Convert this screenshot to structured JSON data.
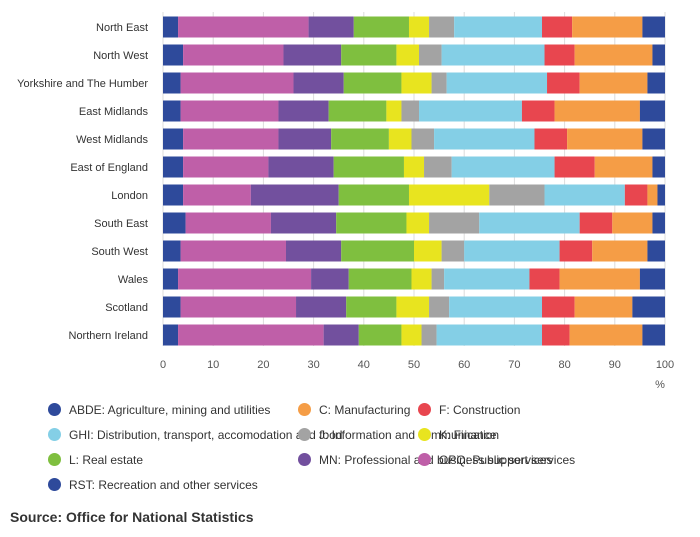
{
  "chart_data": {
    "type": "bar",
    "orientation": "horizontal",
    "stacked": true,
    "title": "",
    "xlabel": "%",
    "ylabel": "",
    "xlim": [
      0,
      100
    ],
    "xticks": [
      0,
      10,
      20,
      30,
      40,
      50,
      60,
      70,
      80,
      90,
      100
    ],
    "grid": true,
    "legend_position": "bottom",
    "categories": [
      "North East",
      "North West",
      "Yorkshire and The Humber",
      "East Midlands",
      "West Midlands",
      "East of England",
      "London",
      "South East",
      "South West",
      "Wales",
      "Scotland",
      "Northern Ireland"
    ],
    "series": [
      {
        "name": "ABDE: Agriculture, mining and utilities",
        "color": "#2e4a9b",
        "values": [
          3.0,
          4.0,
          3.5,
          3.5,
          4.0,
          4.0,
          4.0,
          4.5,
          3.5,
          3.0,
          3.5,
          3.0
        ]
      },
      {
        "name": "OPQ: Public services",
        "color": "#bf5fa8",
        "values": [
          26.0,
          20.0,
          22.5,
          19.5,
          19.0,
          17.0,
          13.5,
          17.0,
          21.0,
          26.5,
          23.0,
          29.0
        ]
      },
      {
        "name": "MN: Professional and business support services",
        "color": "#72509e",
        "values": [
          9.0,
          11.5,
          10.0,
          10.0,
          10.5,
          13.0,
          17.5,
          13.0,
          11.0,
          7.5,
          10.0,
          7.0
        ]
      },
      {
        "name": "L: Real estate",
        "color": "#7fbf3f",
        "values": [
          11.0,
          11.0,
          11.5,
          11.5,
          11.5,
          14.0,
          14.0,
          14.0,
          14.5,
          12.5,
          10.0,
          8.5
        ]
      },
      {
        "name": "K: Finance",
        "color": "#e8e41f",
        "values": [
          4.0,
          4.5,
          6.0,
          3.0,
          4.5,
          4.0,
          16.0,
          4.5,
          5.5,
          4.0,
          6.5,
          4.0
        ]
      },
      {
        "name": "J: Information and communication",
        "color": "#a3a3a3",
        "values": [
          5.0,
          4.5,
          3.0,
          3.5,
          4.5,
          5.5,
          11.0,
          10.0,
          4.5,
          2.5,
          4.0,
          3.0
        ]
      },
      {
        "name": "GHI: Distribution, transport, accomodation and food",
        "color": "#84cfe6",
        "values": [
          17.5,
          20.5,
          20.0,
          20.5,
          20.0,
          20.5,
          16.0,
          20.0,
          19.0,
          17.0,
          18.5,
          21.0
        ]
      },
      {
        "name": "F: Construction",
        "color": "#e8464f",
        "values": [
          6.0,
          6.0,
          6.5,
          6.5,
          6.5,
          8.0,
          4.5,
          6.5,
          6.5,
          6.0,
          6.5,
          5.5
        ]
      },
      {
        "name": "C: Manufacturing",
        "color": "#f59d46",
        "values": [
          14.0,
          15.5,
          13.5,
          17.0,
          15.0,
          11.5,
          2.0,
          8.0,
          11.0,
          16.0,
          11.5,
          14.5
        ]
      },
      {
        "name": "RST: Recreation and other services",
        "color": "#2e4a9b",
        "values": [
          4.5,
          3.0,
          3.5,
          5.5,
          4.5,
          3.5,
          1.5,
          3.5,
          4.5,
          5.0,
          6.5,
          4.5
        ]
      }
    ]
  },
  "legend": [
    {
      "label": "ABDE: Agriculture, mining and utilities",
      "color": "#2e4a9b"
    },
    {
      "label": "C: Manufacturing",
      "color": "#f59d46"
    },
    {
      "label": "F: Construction",
      "color": "#e8464f"
    },
    {
      "label": "GHI: Distribution, transport, accomodation and food",
      "color": "#84cfe6"
    },
    {
      "label": "J: Information and communication",
      "color": "#a3a3a3"
    },
    {
      "label": "K: Finance",
      "color": "#e8e41f"
    },
    {
      "label": "L: Real estate",
      "color": "#7fbf3f"
    },
    {
      "label": "MN: Professional and business support services",
      "color": "#72509e"
    },
    {
      "label": "OPQ: Public services",
      "color": "#bf5fa8"
    },
    {
      "label": "RST: Recreation and other services",
      "color": "#2e4a9b"
    }
  ],
  "source": "Source: Office for National Statistics"
}
